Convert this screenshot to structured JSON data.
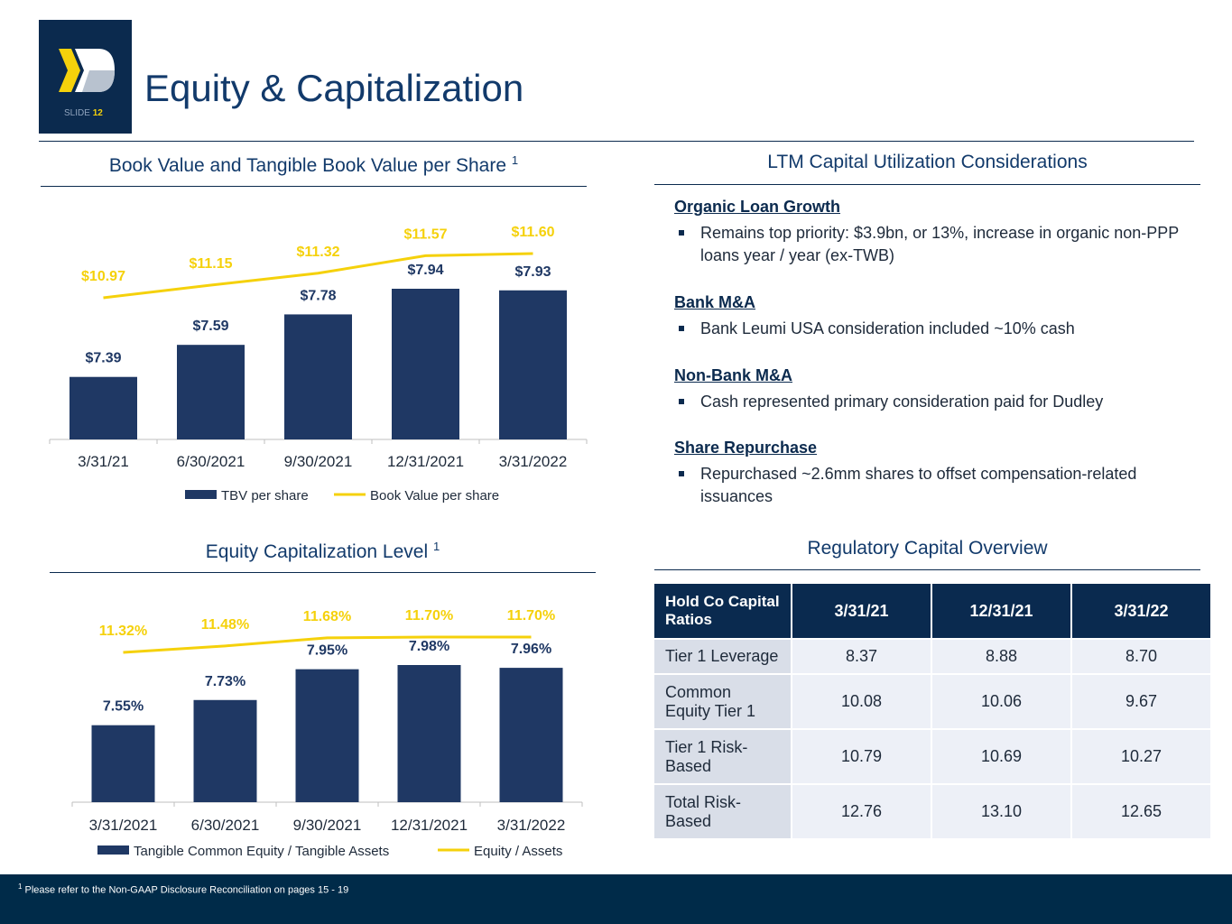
{
  "header": {
    "slide_label": "SLIDE",
    "slide_number": "12",
    "title": "Equity & Capitalization"
  },
  "chart_data": [
    {
      "type": "combo",
      "title": "Book Value and Tangible Book Value per Share",
      "title_superscript": "1",
      "categories": [
        "3/31/21",
        "6/30/2021",
        "9/30/2021",
        "12/31/2021",
        "3/31/2022"
      ],
      "series": [
        {
          "name": "TBV per share",
          "kind": "bar",
          "color": "#1f3864",
          "values": [
            7.39,
            7.59,
            7.78,
            7.94,
            7.93
          ],
          "value_labels": [
            "$7.39",
            "$7.59",
            "$7.78",
            "$7.94",
            "$7.93"
          ]
        },
        {
          "name": "Book Value per share",
          "kind": "line",
          "color": "#f5d10b",
          "values": [
            10.97,
            11.15,
            11.32,
            11.57,
            11.6
          ],
          "value_labels": [
            "$10.97",
            "$11.15",
            "$11.32",
            "$11.57",
            "$11.60"
          ]
        }
      ]
    },
    {
      "type": "combo",
      "title": "Equity Capitalization Level",
      "title_superscript": "1",
      "categories": [
        "3/31/2021",
        "6/30/2021",
        "9/30/2021",
        "12/31/2021",
        "3/31/2022"
      ],
      "series": [
        {
          "name": "Tangible Common Equity / Tangible Assets",
          "kind": "bar",
          "color": "#1f3864",
          "values": [
            7.55,
            7.73,
            7.95,
            7.98,
            7.96
          ],
          "value_labels": [
            "7.55%",
            "7.73%",
            "7.95%",
            "7.98%",
            "7.96%"
          ]
        },
        {
          "name": "Equity / Assets",
          "kind": "line",
          "color": "#f5d10b",
          "values": [
            11.32,
            11.48,
            11.68,
            11.7,
            11.7
          ],
          "value_labels": [
            "11.32%",
            "11.48%",
            "11.68%",
            "11.70%",
            "11.70%"
          ]
        }
      ]
    }
  ],
  "capital": {
    "title": "LTM Capital Utilization Considerations",
    "sections": [
      {
        "heading": "Organic Loan Growth",
        "bullets": [
          "Remains top priority: $3.9bn, or 13%, increase in organic non-PPP loans year / year (ex-TWB)"
        ]
      },
      {
        "heading": "Bank M&A",
        "bullets": [
          "Bank Leumi USA consideration included ~10% cash"
        ]
      },
      {
        "heading": "Non-Bank M&A",
        "bullets": [
          "Cash represented primary consideration paid for Dudley"
        ]
      },
      {
        "heading": "Share Repurchase",
        "bullets": [
          "Repurchased ~2.6mm shares to offset compensation-related issuances"
        ]
      }
    ]
  },
  "table": {
    "title": "Regulatory Capital Overview",
    "header": [
      "Hold Co Capital Ratios",
      "3/31/21",
      "12/31/21",
      "3/31/22"
    ],
    "rows": [
      [
        "Tier 1 Leverage",
        "8.37",
        "8.88",
        "8.70"
      ],
      [
        "Common Equity Tier 1",
        "10.08",
        "10.06",
        "9.67"
      ],
      [
        "Tier 1 Risk-Based",
        "10.79",
        "10.69",
        "10.27"
      ],
      [
        "Total Risk-Based",
        "12.76",
        "13.10",
        "12.65"
      ]
    ]
  },
  "footnote": {
    "marker": "1",
    "text": "Please refer to the Non-GAAP Disclosure Reconciliation on pages 15 - 19"
  }
}
